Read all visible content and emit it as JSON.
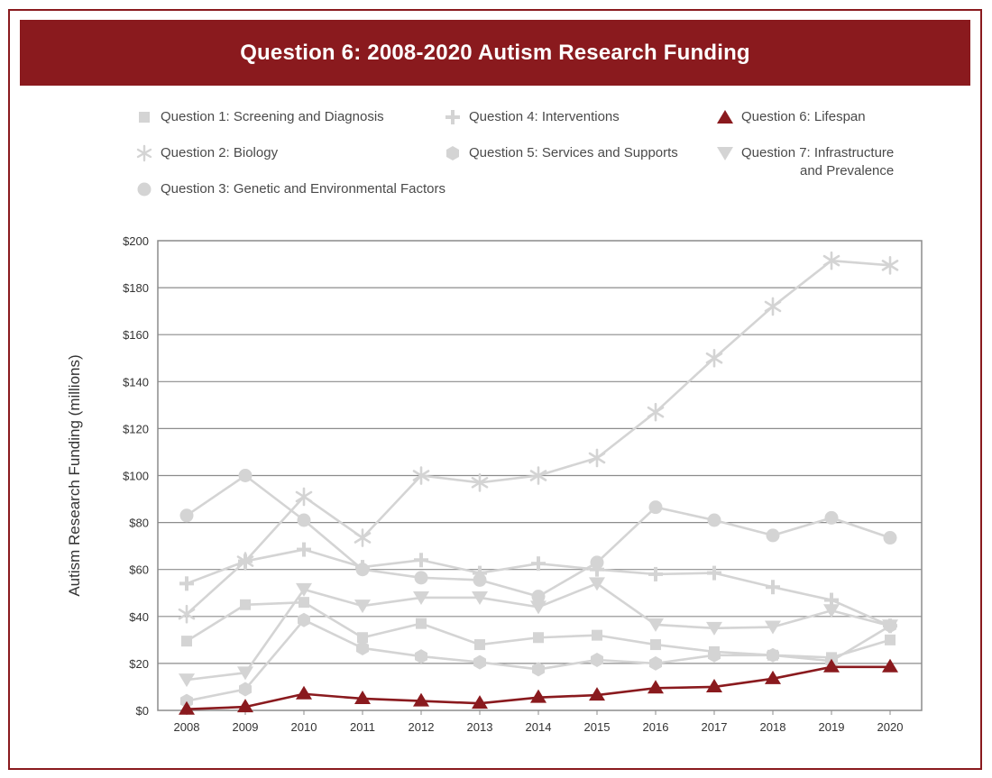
{
  "title": "Question 6: 2008-2020 Autism Research Funding",
  "legend": {
    "q1": "Question 1: Screening and Diagnosis",
    "q2": "Question 2: Biology",
    "q3": "Question 3: Genetic and Environmental Factors",
    "q4": "Question 4: Interventions",
    "q5": "Question 5: Services and Supports",
    "q6": "Question 6: Lifespan",
    "q7_line1": "Question 7: Infrastructure",
    "q7_line2": "and Prevalence"
  },
  "colors": {
    "brand": "#8a1a1e",
    "muted_series": "#d4d4d4",
    "highlight_series": "#8a1a1e",
    "grid": "#8c8c8c"
  },
  "chart_data": {
    "type": "line",
    "title": "Question 6: 2008-2020 Autism Research Funding",
    "xlabel": "",
    "ylabel": "Autism Research Funding (millions)",
    "ylim": [
      0,
      200
    ],
    "grid": true,
    "legend_placement": "top",
    "categories": [
      "2008",
      "2009",
      "2010",
      "2011",
      "2012",
      "2013",
      "2014",
      "2015",
      "2016",
      "2017",
      "2018",
      "2019",
      "2020"
    ],
    "y_ticks": [
      "$0",
      "$20",
      "$40",
      "$60",
      "$80",
      "$100",
      "$120",
      "$140",
      "$160",
      "$180",
      "$200"
    ],
    "series": [
      {
        "name": "Question 1: Screening and Diagnosis",
        "marker": "square-icon",
        "highlight": false,
        "values": [
          29.5,
          45,
          46,
          31,
          37,
          28,
          31,
          32,
          28,
          25,
          23.5,
          22.5,
          30
        ]
      },
      {
        "name": "Question 2: Biology",
        "marker": "asterisk-icon",
        "highlight": false,
        "values": [
          41,
          63.5,
          91,
          73.5,
          100,
          97,
          100,
          107.5,
          127,
          150,
          172,
          191.5,
          189.5
        ]
      },
      {
        "name": "Question 3: Genetic and Environmental Factors",
        "marker": "circle-icon",
        "highlight": false,
        "values": [
          83,
          100,
          81,
          60,
          56.5,
          55.5,
          48.5,
          63,
          86.5,
          81,
          74.5,
          82,
          73.5
        ]
      },
      {
        "name": "Question 4: Interventions",
        "marker": "plus-icon",
        "highlight": false,
        "values": [
          54,
          63.5,
          68.5,
          61,
          64,
          58.5,
          62.5,
          60,
          58,
          58.5,
          52.5,
          47,
          36
        ]
      },
      {
        "name": "Question 5: Services and Supports",
        "marker": "hexagon-icon",
        "highlight": false,
        "values": [
          4,
          9,
          38.5,
          26.5,
          23,
          20.5,
          17.5,
          21.5,
          20,
          23.5,
          23.5,
          21,
          36
        ]
      },
      {
        "name": "Question 6: Lifespan",
        "marker": "triangle-up-icon",
        "highlight": true,
        "values": [
          0.5,
          1.5,
          7,
          5,
          4,
          3,
          5.5,
          6.5,
          9.5,
          10,
          13.5,
          18.5,
          18.5
        ]
      },
      {
        "name": "Question 7: Infrastructure and Prevalence",
        "marker": "triangle-down-icon",
        "highlight": false,
        "values": [
          13,
          16,
          51.5,
          44.5,
          48,
          48,
          44,
          54,
          36.5,
          35,
          35.5,
          42.5,
          36
        ]
      }
    ]
  }
}
